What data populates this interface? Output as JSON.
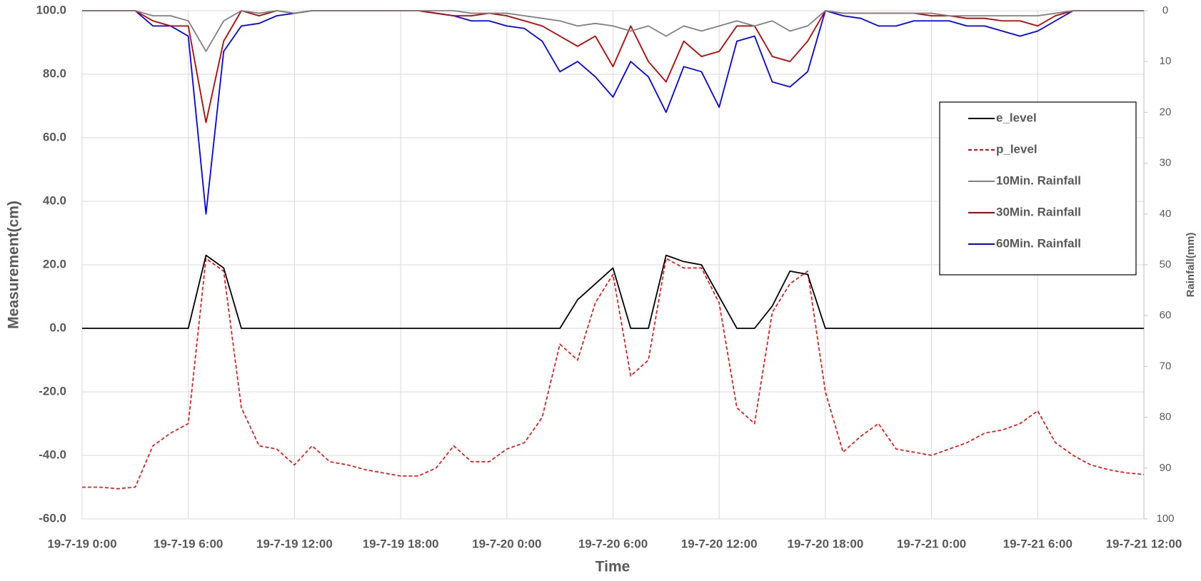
{
  "chart_data": {
    "type": "line",
    "x_label": "Time",
    "y_label": "Measurement(cm)",
    "y2_label": "Rainfall(mm)",
    "x": [
      "19-7-19 0:00",
      "19-7-19 1:00",
      "19-7-19 2:00",
      "19-7-19 3:00",
      "19-7-19 4:00",
      "19-7-19 5:00",
      "19-7-19 6:00",
      "19-7-19 7:00",
      "19-7-19 8:00",
      "19-7-19 9:00",
      "19-7-19 10:00",
      "19-7-19 11:00",
      "19-7-19 12:00",
      "19-7-19 13:00",
      "19-7-19 14:00",
      "19-7-19 15:00",
      "19-7-19 16:00",
      "19-7-19 17:00",
      "19-7-19 18:00",
      "19-7-19 19:00",
      "19-7-19 20:00",
      "19-7-19 21:00",
      "19-7-19 22:00",
      "19-7-19 23:00",
      "19-7-20 0:00",
      "19-7-20 1:00",
      "19-7-20 2:00",
      "19-7-20 3:00",
      "19-7-20 4:00",
      "19-7-20 5:00",
      "19-7-20 6:00",
      "19-7-20 7:00",
      "19-7-20 8:00",
      "19-7-20 9:00",
      "19-7-20 10:00",
      "19-7-20 11:00",
      "19-7-20 12:00",
      "19-7-20 13:00",
      "19-7-20 14:00",
      "19-7-20 15:00",
      "19-7-20 16:00",
      "19-7-20 17:00",
      "19-7-20 18:00",
      "19-7-20 19:00",
      "19-7-20 20:00",
      "19-7-20 21:00",
      "19-7-20 22:00",
      "19-7-20 23:00",
      "19-7-21 0:00",
      "19-7-21 1:00",
      "19-7-21 2:00",
      "19-7-21 3:00",
      "19-7-21 4:00",
      "19-7-21 5:00",
      "19-7-21 6:00",
      "19-7-21 7:00",
      "19-7-21 8:00",
      "19-7-21 9:00",
      "19-7-21 10:00",
      "19-7-21 11:00",
      "19-7-21 12:00"
    ],
    "xlim": [
      "19-7-19 0:00",
      "19-7-21 12:00"
    ],
    "xticks": [
      "19-7-19 0:00",
      "19-7-19 6:00",
      "19-7-19 12:00",
      "19-7-19 18:00",
      "19-7-20 0:00",
      "19-7-20 6:00",
      "19-7-20 12:00",
      "19-7-20 18:00",
      "19-7-21 0:00",
      "19-7-21 6:00",
      "19-7-21 12:00"
    ],
    "ylim": [
      -60,
      100
    ],
    "yticks": [
      {
        "value": -60,
        "label": "-60.0"
      },
      {
        "value": -40,
        "label": "-40.0"
      },
      {
        "value": -20,
        "label": "-20.0"
      },
      {
        "value": 0,
        "label": "0.0"
      },
      {
        "value": 20,
        "label": "20.0"
      },
      {
        "value": 40,
        "label": "40.0"
      },
      {
        "value": 60,
        "label": "60.0"
      },
      {
        "value": 80,
        "label": "80.0"
      },
      {
        "value": 100,
        "label": "100.0"
      }
    ],
    "y2lim": [
      0,
      100
    ],
    "y2_inverted": true,
    "y2ticks": [
      0,
      10,
      20,
      30,
      40,
      50,
      60,
      70,
      80,
      90,
      100
    ],
    "grid": true,
    "legend": "upper right",
    "series": [
      {
        "name": "e_level",
        "color": "#000000",
        "dash": "solid",
        "values": [
          0,
          0,
          0,
          0,
          0,
          0,
          0,
          23,
          19,
          0,
          0,
          0,
          0,
          0,
          0,
          0,
          0,
          0,
          0,
          0,
          0,
          0,
          0,
          0,
          0,
          0,
          0,
          0,
          9,
          14,
          19,
          0,
          0,
          23,
          21,
          20,
          10,
          0,
          0,
          7,
          18,
          17,
          0,
          0,
          0,
          0,
          0,
          0,
          0,
          0,
          0,
          0,
          0,
          0,
          0,
          0,
          0,
          0,
          0,
          0,
          0
        ]
      },
      {
        "name": "p_level",
        "color": "#ff0000",
        "dash": "dashed",
        "values": [
          -50,
          -50,
          -50.5,
          -50,
          -37,
          -33,
          -30,
          22,
          18,
          -25,
          -37,
          -38,
          -43,
          -37,
          -42,
          -43,
          -44.5,
          -45.5,
          -46.5,
          -46.5,
          -44,
          -37,
          -42,
          -42,
          -38,
          -36,
          -28,
          -5,
          -10,
          8,
          17,
          -15,
          -10,
          22,
          19,
          19,
          8,
          -25,
          -30,
          5,
          14,
          18,
          -20,
          -39,
          -34,
          -30,
          -38,
          -39,
          -40,
          -38,
          -36,
          -33,
          -32,
          -30,
          -26,
          -36,
          -40,
          -43,
          -44.5,
          -45.5,
          -46
        ]
      },
      {
        "name": "10Min. Rainfall",
        "color": "#808080",
        "dash": "solid",
        "axis": "y2",
        "values": [
          0,
          0,
          0,
          0,
          1,
          1,
          2,
          8,
          2,
          0,
          0.5,
          0,
          0.5,
          0,
          0,
          0,
          0,
          0,
          0,
          0,
          0,
          0,
          0.5,
          0.5,
          0.5,
          1,
          1.5,
          2,
          3,
          2.5,
          3,
          4,
          3,
          5,
          3,
          4,
          3,
          2,
          3,
          2,
          4,
          3,
          0,
          0.5,
          0.5,
          0.5,
          0.5,
          0.5,
          0.5,
          1,
          1,
          1,
          1,
          1,
          1,
          0.5,
          0,
          0,
          0,
          0,
          0
        ]
      },
      {
        "name": "30Min. Rainfall",
        "color": "#c00000",
        "dash": "solid",
        "axis": "y2",
        "values": [
          0,
          0,
          0,
          0,
          2,
          3,
          3,
          22,
          6,
          0,
          1,
          0,
          0.5,
          0,
          0,
          0,
          0,
          0,
          0,
          0,
          0.5,
          1,
          1,
          0.5,
          1,
          2,
          3,
          5,
          7,
          5,
          11,
          3,
          10,
          14,
          6,
          9,
          8,
          3,
          3,
          9,
          10,
          6,
          0,
          0.5,
          0.5,
          0.5,
          0.5,
          0.5,
          1,
          1,
          1.5,
          1.5,
          2,
          2,
          3,
          1,
          0,
          0,
          0,
          0,
          0
        ]
      },
      {
        "name": "60Min. Rainfall",
        "color": "#0000ff",
        "dash": "solid",
        "axis": "y2",
        "values": [
          0,
          0,
          0,
          0,
          3,
          3,
          5,
          40,
          8,
          3,
          2.5,
          1,
          0.5,
          0,
          0,
          0,
          0,
          0,
          0,
          0,
          0.5,
          1,
          2,
          2,
          3,
          3.5,
          6,
          12,
          10,
          13,
          17,
          10,
          13,
          20,
          11,
          12,
          19,
          6,
          5,
          14,
          15,
          12,
          0,
          1,
          1.5,
          3,
          3,
          2,
          2,
          2,
          3,
          3,
          4,
          5,
          4,
          2,
          0,
          0,
          0,
          0,
          0
        ]
      }
    ]
  }
}
